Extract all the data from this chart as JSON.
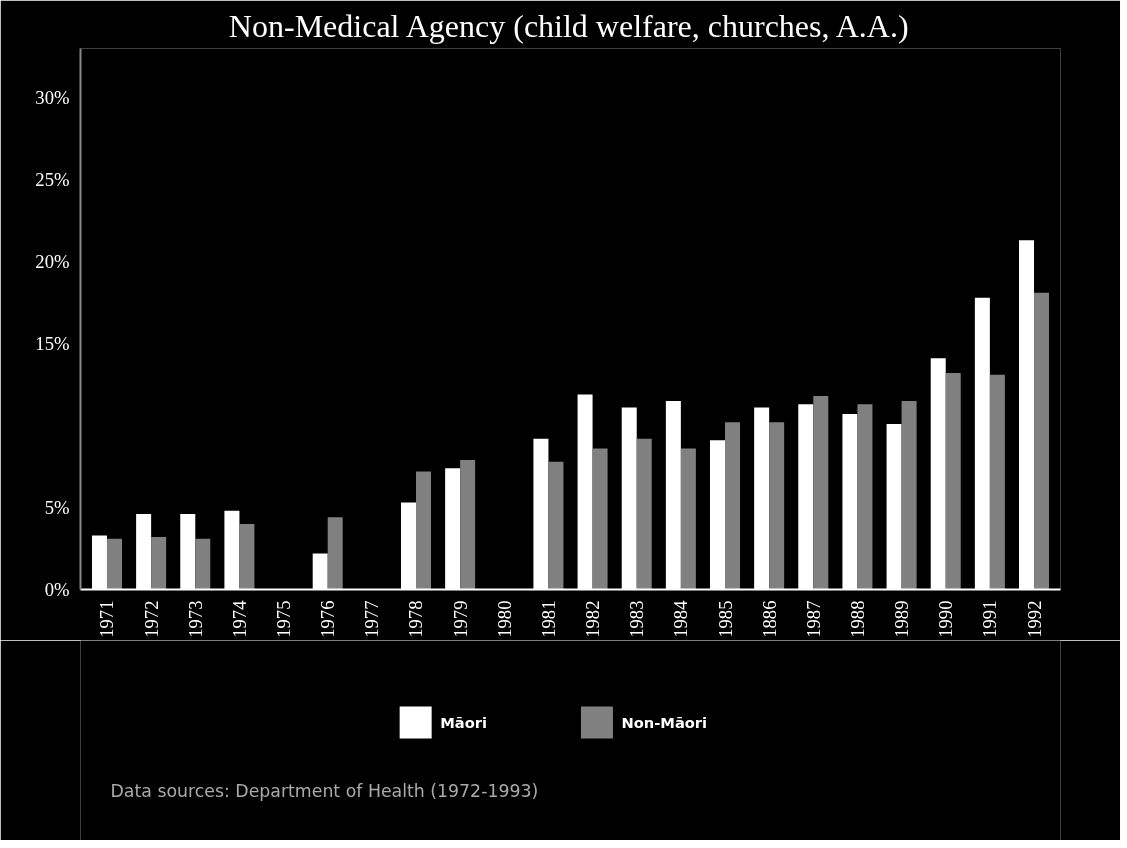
{
  "chart_data": {
    "type": "bar",
    "title": "Non-Medical Agency (child welfare, churches, A.A.)",
    "categories": [
      "1971",
      "1972",
      "1973",
      "1974",
      "1975",
      "1976",
      "1977",
      "1978",
      "1979",
      "1980",
      "1981",
      "1982",
      "1983",
      "1984",
      "1985",
      "1886",
      "1987",
      "1988",
      "1989",
      "1990",
      "1991",
      "1992"
    ],
    "series": [
      {
        "name": "Māori",
        "color": "#ffffff",
        "values": [
          3.3,
          4.6,
          4.6,
          4.8,
          0,
          2.2,
          0,
          5.3,
          7.4,
          0,
          9.2,
          11.9,
          11.1,
          11.5,
          9.1,
          11.1,
          11.3,
          10.7,
          10.1,
          14.1,
          17.8,
          21.3
        ]
      },
      {
        "name": "Non-Māori",
        "color": "#808080",
        "values": [
          3.1,
          3.2,
          3.1,
          4.0,
          0,
          4.4,
          0,
          7.2,
          7.9,
          0,
          7.8,
          8.6,
          9.2,
          8.6,
          10.2,
          10.2,
          11.8,
          11.3,
          11.5,
          13.2,
          13.1,
          18.1
        ]
      }
    ],
    "ylim": [
      0,
      33
    ],
    "yticks": [
      {
        "value": 0,
        "label": "0%"
      },
      {
        "value": 5,
        "label": "5%"
      },
      {
        "value": 15,
        "label": "15%"
      },
      {
        "value": 20,
        "label": "20%"
      },
      {
        "value": 25,
        "label": "25%"
      },
      {
        "value": 30,
        "label": "30%"
      }
    ],
    "grid": false,
    "legend": "bottom",
    "annotations": [
      "Data sources: Department of Health (1972-1993)"
    ]
  }
}
